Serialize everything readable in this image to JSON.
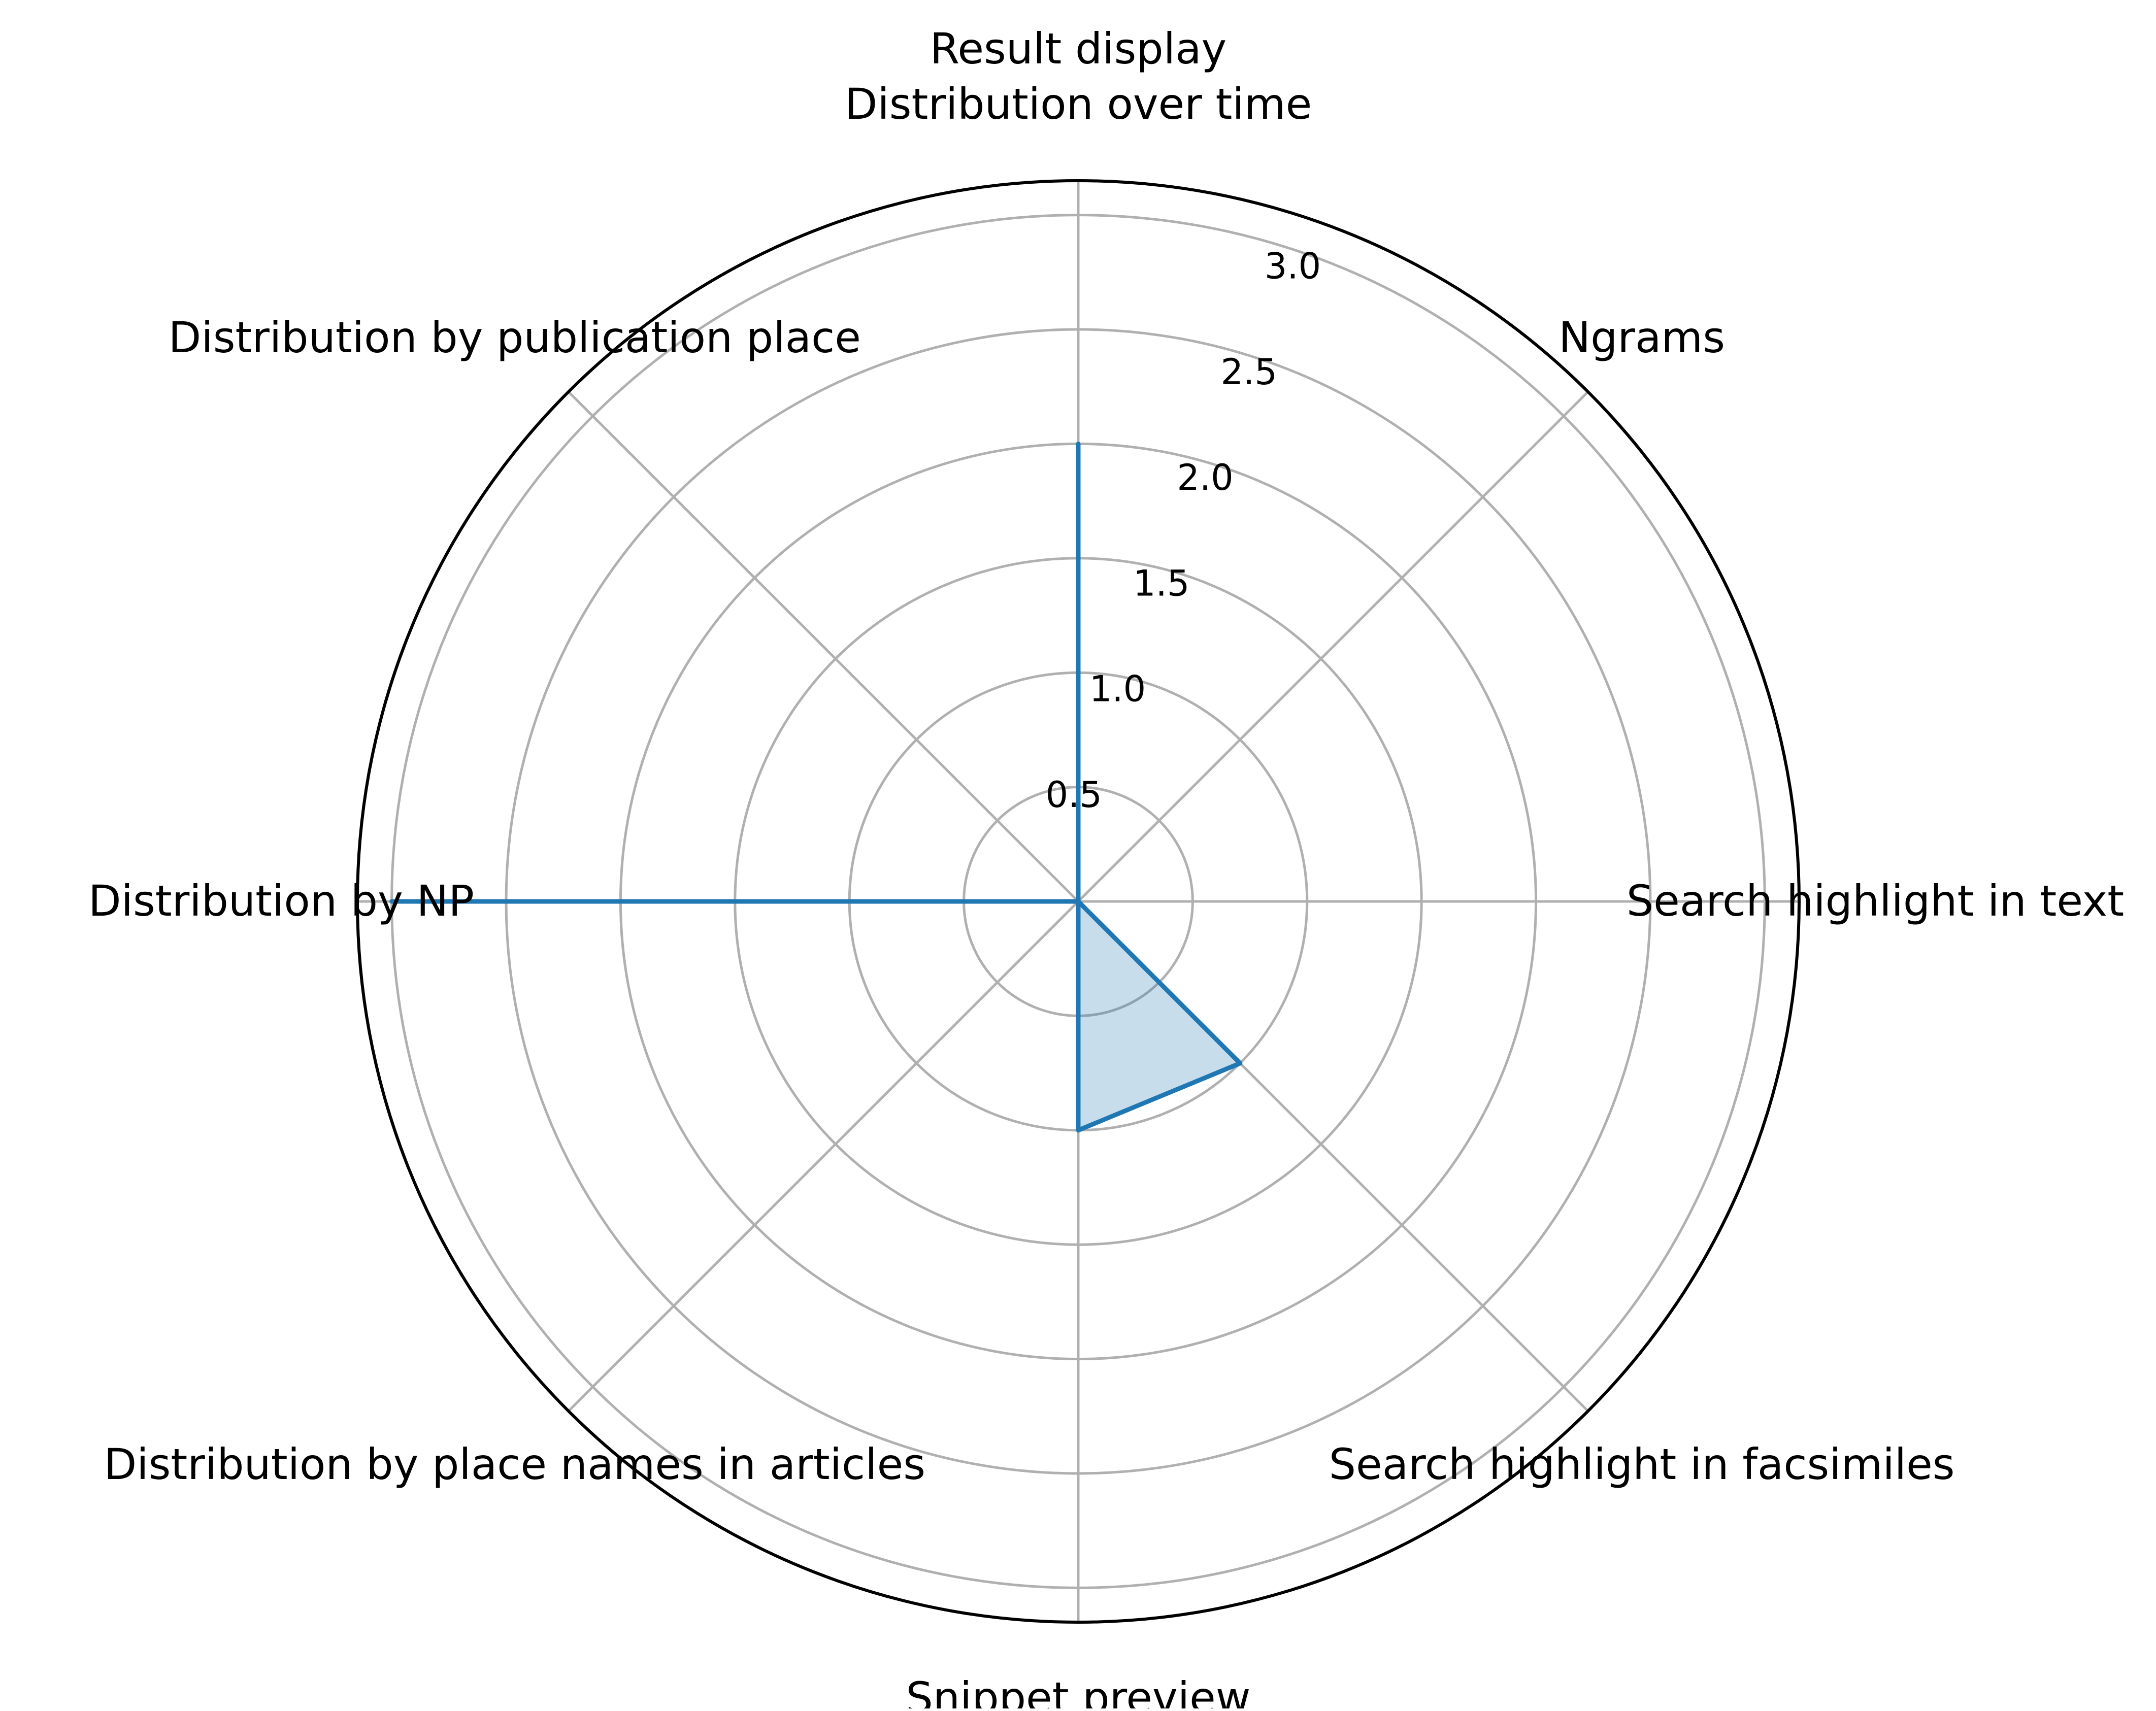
{
  "chart_data": {
    "type": "radar",
    "title": "Result display",
    "categories": [
      "Distribution over time",
      "Ngrams",
      "Search highlight in text",
      "Search highlight in facsimiles",
      "Snippet preview",
      "Distribution by place names in articles",
      "Distribution by NP",
      "Distribution by publication place"
    ],
    "series": [
      {
        "values": [
          2,
          0,
          0,
          1,
          1,
          0,
          3,
          0
        ]
      }
    ],
    "rlim": [
      0,
      3.15
    ],
    "rticks": [
      "0.5",
      "1.0",
      "1.5",
      "2.0",
      "2.5",
      "3.0"
    ],
    "rtick_values": [
      0.5,
      1.0,
      1.5,
      2.0,
      2.5,
      3.0
    ],
    "grid": true,
    "colors": {
      "line": "#1f77b4",
      "fill": "#1f77b4",
      "grid": "#b0b0b0",
      "frame": "#000000"
    }
  }
}
